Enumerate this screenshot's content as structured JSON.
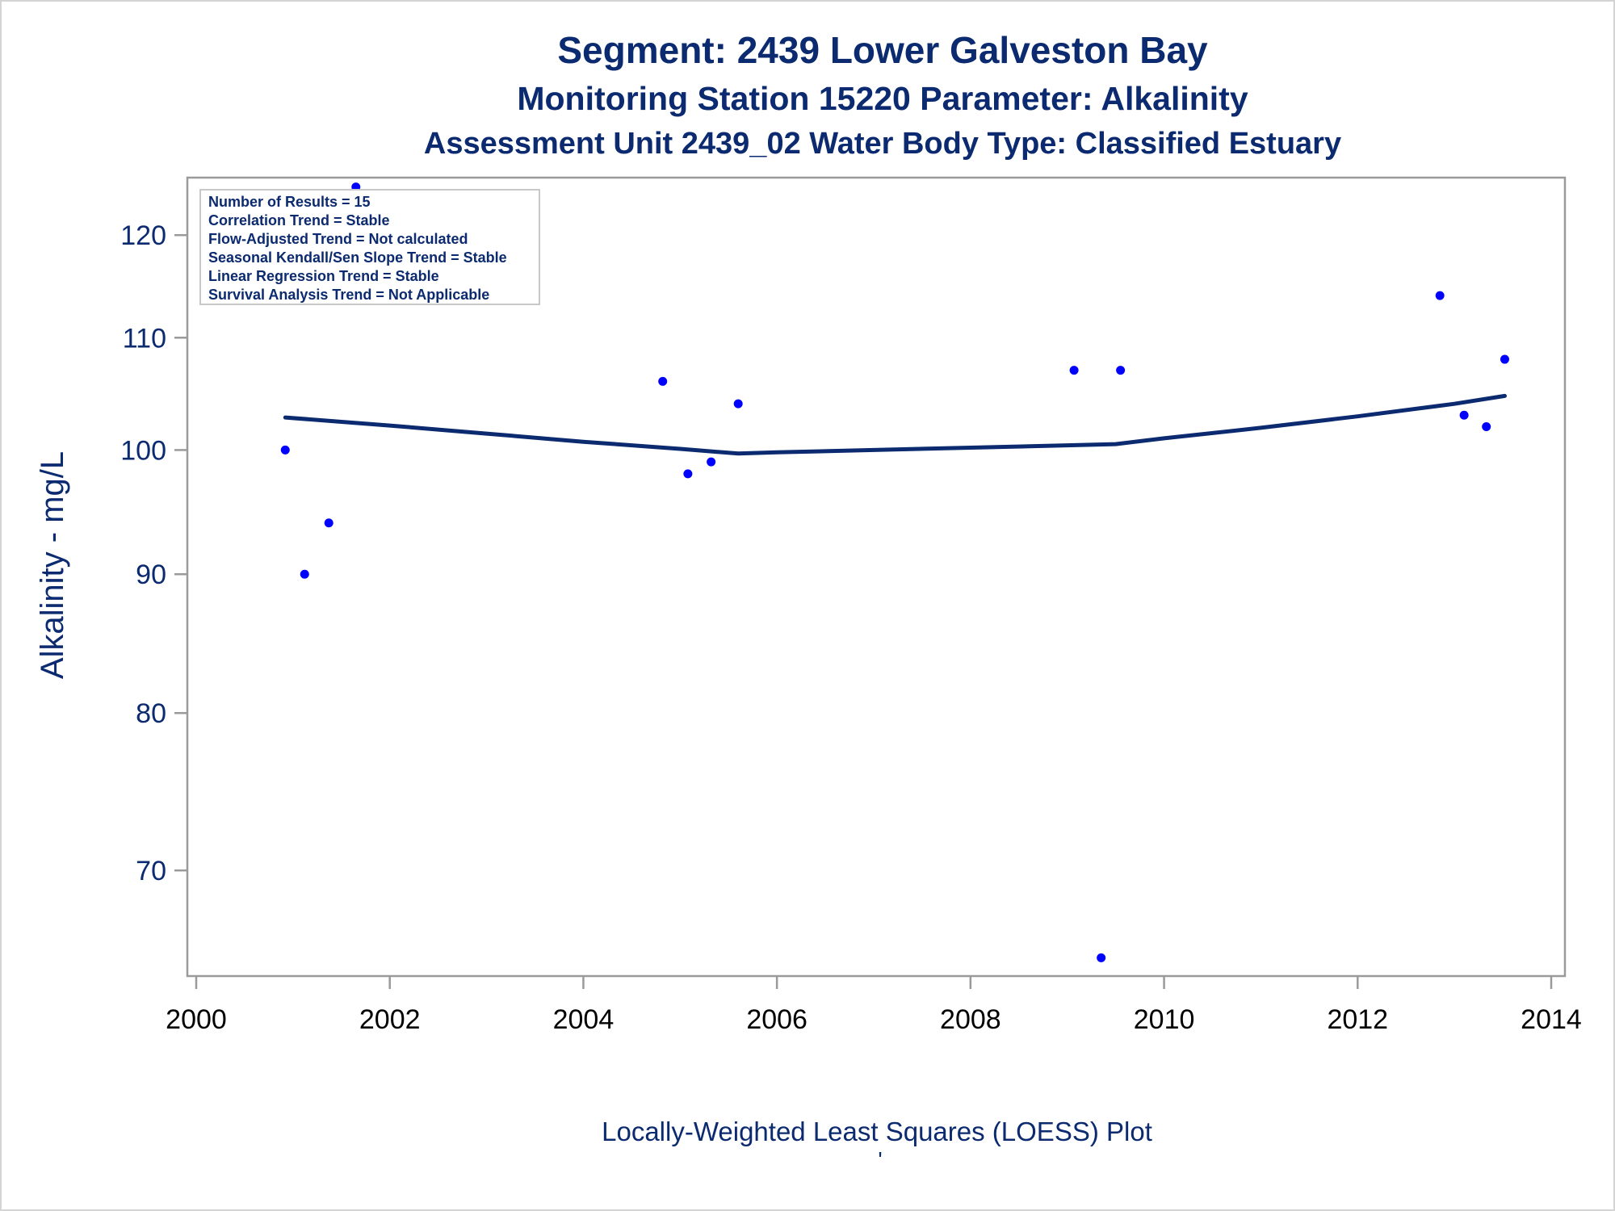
{
  "chart_data": {
    "type": "scatter",
    "title": "Segment: 2439  Lower Galveston Bay",
    "subtitle": "Monitoring Station 15220 Parameter: Alkalinity",
    "subtitle2": "Assessment Unit 2439_02   Water Body Type: Classified Estuary",
    "xlabel": "Locally-Weighted Least Squares (LOESS) Plot",
    "ylabel": "Alkalinity - mg/L",
    "footnote": "'",
    "xlim": [
      2000,
      2014
    ],
    "ylim": [
      64,
      126
    ],
    "y_scale": "log",
    "x_ticks": [
      2000,
      2002,
      2004,
      2006,
      2008,
      2010,
      2012,
      2014
    ],
    "y_ticks": [
      70,
      80,
      90,
      100,
      110,
      120
    ],
    "grid": false,
    "colors": {
      "points": "#0000ff",
      "line": "#0b2a6f",
      "text": "#0b2a6f"
    },
    "inset": {
      "position": "top-left",
      "lines": [
        "Number of Results = 15",
        "Correlation Trend = Stable",
        "Flow-Adjusted Trend = Not calculated",
        "Seasonal Kendall/Sen Slope Trend = Stable",
        "Linear Regression Trend = Stable",
        "Survival Analysis Trend = Not Applicable"
      ]
    },
    "series": [
      {
        "type": "scatter",
        "points": [
          {
            "x": 2000.92,
            "y": 100
          },
          {
            "x": 2001.12,
            "y": 90
          },
          {
            "x": 2001.37,
            "y": 94
          },
          {
            "x": 2001.65,
            "y": 125
          },
          {
            "x": 2004.82,
            "y": 106
          },
          {
            "x": 2005.08,
            "y": 98
          },
          {
            "x": 2005.32,
            "y": 99
          },
          {
            "x": 2005.6,
            "y": 104
          },
          {
            "x": 2009.07,
            "y": 107
          },
          {
            "x": 2009.35,
            "y": 65
          },
          {
            "x": 2009.55,
            "y": 107
          },
          {
            "x": 2012.85,
            "y": 114
          },
          {
            "x": 2013.1,
            "y": 103
          },
          {
            "x": 2013.33,
            "y": 102
          },
          {
            "x": 2013.52,
            "y": 108
          }
        ]
      },
      {
        "type": "line",
        "points": [
          {
            "x": 2000.92,
            "y": 102.8
          },
          {
            "x": 2002,
            "y": 102.1
          },
          {
            "x": 2003,
            "y": 101.4
          },
          {
            "x": 2004,
            "y": 100.7
          },
          {
            "x": 2005,
            "y": 100.1
          },
          {
            "x": 2005.6,
            "y": 99.7
          },
          {
            "x": 2006,
            "y": 99.8
          },
          {
            "x": 2007,
            "y": 100.0
          },
          {
            "x": 2008,
            "y": 100.2
          },
          {
            "x": 2009,
            "y": 100.4
          },
          {
            "x": 2009.5,
            "y": 100.5
          },
          {
            "x": 2010,
            "y": 101.0
          },
          {
            "x": 2011,
            "y": 101.9
          },
          {
            "x": 2012,
            "y": 102.9
          },
          {
            "x": 2013,
            "y": 104.0
          },
          {
            "x": 2013.52,
            "y": 104.7
          }
        ]
      }
    ]
  }
}
